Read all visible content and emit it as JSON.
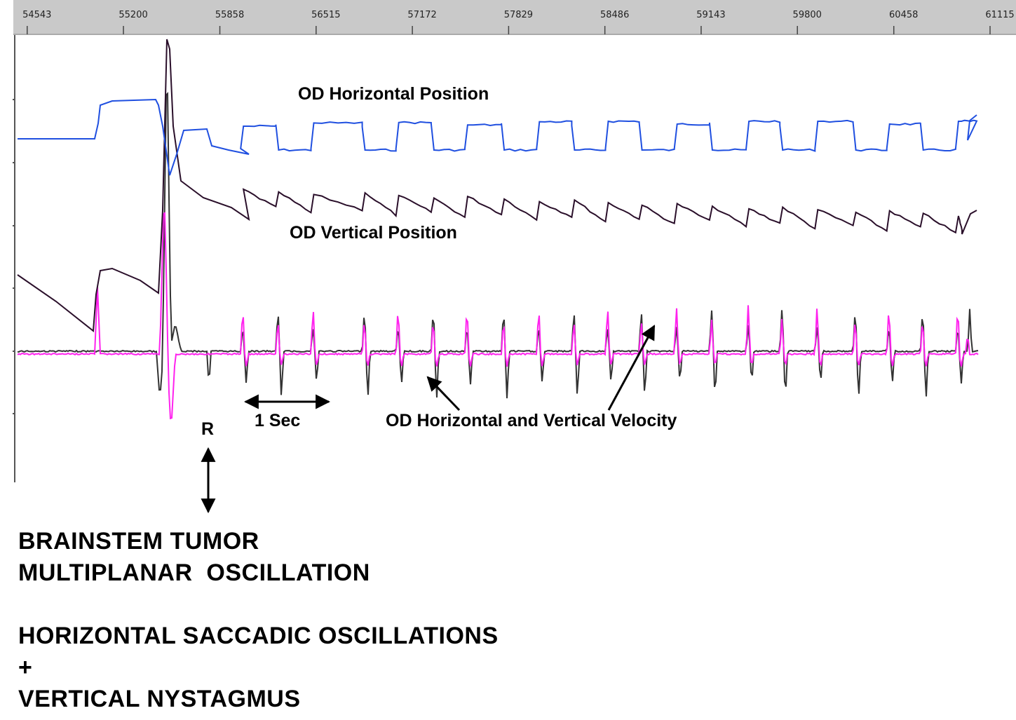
{
  "chart_data": {
    "type": "line",
    "x_axis": {
      "position": "top",
      "ticks": [
        "54543",
        "55200",
        "55858",
        "56515",
        "57172",
        "57829",
        "58486",
        "59143",
        "59800",
        "60458",
        "61115"
      ],
      "xlim": [
        54300,
        61115
      ]
    },
    "grid": false,
    "series": [
      {
        "name": "OD Horizontal Position",
        "color": "#1f4fe0"
      },
      {
        "name": "OD Vertical Position",
        "color": "#2a0f2a"
      },
      {
        "color": "#ff22ee"
      },
      {
        "color": "#333333"
      }
    ],
    "beat_times": [
      56000,
      56240,
      56480,
      56830,
      57060,
      57300,
      57530,
      57780,
      58020,
      58260,
      58490,
      58720,
      58960,
      59200,
      59450,
      59680,
      59920,
      60180,
      60410,
      60640,
      60880
    ],
    "annotations": {
      "horizontal_position": "OD Horizontal Position",
      "vertical_position": "OD Vertical Position",
      "velocity": "OD Horizontal and Vertical Velocity",
      "scale": "1 Sec",
      "marker": "R"
    }
  },
  "caption": {
    "line1": "BRAINSTEM TUMOR",
    "line2": "MULTIPLANAR  OSCILLATION",
    "line3": "HORIZONTAL SACCADIC OSCILLATIONS",
    "line4": "+",
    "line5": "VERTICAL NYSTAGMUS"
  }
}
